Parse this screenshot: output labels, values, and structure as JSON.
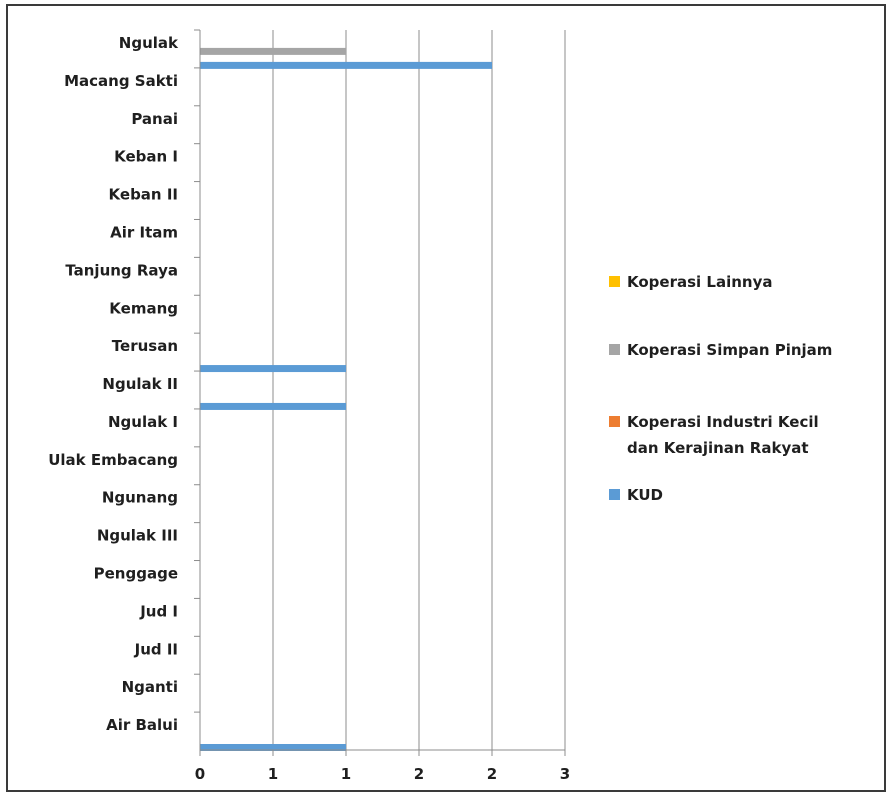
{
  "chart_data": {
    "type": "bar",
    "orientation": "horizontal",
    "categories": [
      "Ngulak",
      "Macang Sakti",
      "Panai",
      "Keban I",
      "Keban II",
      "Air Itam",
      "Tanjung Raya",
      "Kemang",
      "Terusan",
      "Ngulak II",
      "Ngulak I",
      "Ulak Embacang",
      "Ngunang",
      "Ngulak III",
      "Penggage",
      "Jud I",
      "Jud II",
      "Nganti",
      "Air Balui"
    ],
    "x_tick_labels": [
      "0",
      "1",
      "1",
      "2",
      "2",
      "3"
    ],
    "xlim": [
      0,
      2.5
    ],
    "grid": true,
    "legend_position": "right",
    "series": [
      {
        "name": "Koperasi Lainnya",
        "color": "#FFC000",
        "values": [
          0,
          0,
          0,
          0,
          0,
          0,
          0,
          0,
          0,
          0,
          0,
          0,
          0,
          0,
          0,
          0,
          0,
          0,
          0
        ]
      },
      {
        "name": "Koperasi Simpan Pinjam",
        "color": "#A5A5A5",
        "values": [
          1,
          0,
          0,
          0,
          0,
          0,
          0,
          0,
          0,
          0,
          0,
          0,
          0,
          0,
          0,
          0,
          0,
          0,
          0
        ]
      },
      {
        "name": "Koperasi Industri Kecil dan Kerajinan Rakyat",
        "legend_lines": [
          "Koperasi Industri Kecil",
          "dan Kerajinan Rakyat"
        ],
        "color": "#ED7D31",
        "values": [
          0,
          0,
          0,
          0,
          0,
          0,
          0,
          0,
          0,
          0,
          0,
          0,
          0,
          0,
          0,
          0,
          0,
          0,
          0
        ]
      },
      {
        "name": "KUD",
        "color": "#5B9BD5",
        "values": [
          2,
          0,
          0,
          0,
          0,
          0,
          0,
          0,
          1,
          1,
          0,
          0,
          0,
          0,
          0,
          0,
          0,
          0,
          1
        ]
      }
    ]
  }
}
